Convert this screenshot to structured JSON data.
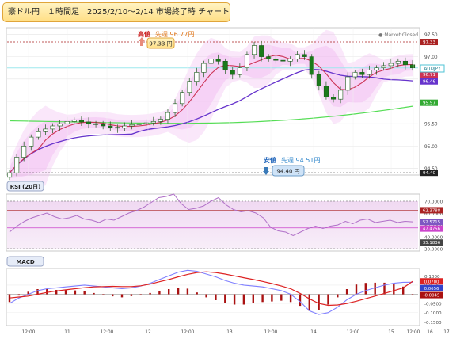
{
  "header": {
    "title": "豪ドル円　１時間足　2025/2/10〜2/14 市場終了時 チャート形状"
  },
  "colors": {
    "candle_up": "#ffffff",
    "candle_down": "#1a7a1a",
    "bb_fill": "#f1b9f1",
    "ma_short": "#cc3355",
    "ma_long": "#6633cc",
    "ma_200": "#55dd55",
    "rsi_line": "#b070c8",
    "macd_line": "#7f7fff",
    "signal_line": "#dd2222",
    "hist": "#aa1111",
    "price_line": "#9ee8ee",
    "high_line": "#aa2222",
    "low_line": "#333333"
  },
  "main": {
    "market_status": "● Market Closed",
    "ticker": "AUDJPY",
    "high_label": "高値",
    "high_prev_week": "先週 96.77円",
    "high_value": "97.33 円",
    "low_label": "安値",
    "low_prev_week": "先週 94.51円",
    "low_value": "94.40 円",
    "price_ticks": [
      "97.50",
      "97.00",
      "96.50",
      "96.00",
      "95.50",
      "95.00",
      "94.50"
    ],
    "badges": [
      {
        "text": "97.33",
        "color": "#aa2222"
      },
      {
        "text": "96.75",
        "color": "#4fc3d6"
      },
      {
        "text": "96.71",
        "color": "#cc3355"
      },
      {
        "text": "96.46",
        "color": "#6633cc"
      },
      {
        "text": "95.97",
        "color": "#33aa33"
      },
      {
        "text": "94.40",
        "color": "#222222"
      }
    ]
  },
  "rsi": {
    "label": "RSI (20日)",
    "ticks": [
      "70.0000",
      "60.0000",
      "50.0000",
      "40.0000",
      "30.0000"
    ],
    "badges": [
      {
        "text": "62.3788",
        "color": "#aa2222"
      },
      {
        "text": "52.5715",
        "color": "#7e57c2"
      },
      {
        "text": "47.4756",
        "color": "#cc44cc"
      },
      {
        "text": "35.1836",
        "color": "#444444"
      }
    ]
  },
  "macd": {
    "label": "MACD",
    "ticks": [
      "0.1000",
      "0.0500",
      "0.0000",
      "-0.0500",
      "-0.1000",
      "-0.1500"
    ],
    "badges": [
      {
        "text": "0.0700",
        "color": "#dd2222"
      },
      {
        "text": "0.0656",
        "color": "#3344cc"
      },
      {
        "text": "-0.0045",
        "color": "#aa1111"
      }
    ]
  },
  "xaxis": {
    "labels": [
      "12:00",
      "11",
      "12:00",
      "12",
      "12:00",
      "13",
      "12:00",
      "14",
      "12:00",
      "15",
      "12:00",
      "16",
      "17"
    ]
  },
  "chart_data": {
    "type": "line",
    "title": "豪ドル円　１時間足　2025/2/10〜2/14 市場終了時 チャート形状",
    "x": [
      "12:00",
      "11",
      "12:00",
      "12",
      "12:00",
      "13",
      "12:00",
      "14",
      "12:00",
      "15",
      "12:00",
      "16",
      "17"
    ],
    "price_series_close": [
      94.4,
      94.75,
      95.0,
      95.2,
      95.32,
      95.38,
      95.45,
      95.5,
      95.55,
      95.58,
      95.54,
      95.5,
      95.48,
      95.45,
      95.42,
      95.4,
      95.45,
      95.48,
      95.5,
      95.52,
      95.55,
      95.6,
      95.75,
      95.95,
      96.2,
      96.45,
      96.65,
      96.85,
      96.95,
      96.9,
      96.7,
      96.6,
      96.75,
      97.05,
      97.25,
      97.0,
      96.95,
      96.92,
      96.9,
      96.95,
      97.05,
      97.0,
      96.6,
      96.35,
      96.1,
      96.05,
      96.25,
      96.55,
      96.65,
      96.6,
      96.7,
      96.75,
      96.8,
      96.85,
      96.9,
      96.82,
      96.75
    ],
    "high": 97.33,
    "low": 94.4,
    "prev_week_high": 96.77,
    "prev_week_low": 94.51,
    "last": 96.75,
    "ma_short_last": 96.71,
    "ma_long_last": 96.46,
    "ma_200_last": 95.97,
    "ylim": [
      94.35,
      97.65
    ],
    "rsi": {
      "values": [
        44,
        49,
        53,
        56,
        58,
        60,
        57,
        55,
        56,
        58,
        55,
        54,
        52,
        55,
        54,
        57,
        60,
        62,
        65,
        69,
        73,
        74,
        76,
        68,
        63,
        64,
        66,
        70,
        73,
        67,
        63,
        61,
        62,
        60,
        56,
        48,
        45,
        44,
        41,
        44,
        47,
        49,
        47,
        49,
        50,
        53,
        51,
        54,
        55,
        52,
        53,
        54,
        52,
        53,
        52.5715
      ],
      "ylim": [
        28,
        76
      ],
      "levels": [
        70,
        30
      ],
      "last": 52.5715,
      "upper_band": 62.3788,
      "lower_band": 47.4756,
      "prev": 35.1836
    },
    "macd": {
      "macd": [
        -0.05,
        -0.02,
        0.0,
        0.02,
        0.03,
        0.035,
        0.04,
        0.045,
        0.05,
        0.045,
        0.04,
        0.035,
        0.03,
        0.035,
        0.045,
        0.06,
        0.08,
        0.1,
        0.12,
        0.13,
        0.125,
        0.11,
        0.095,
        0.075,
        0.06,
        0.05,
        0.045,
        0.04,
        0.03,
        0.02,
        0.0,
        -0.04,
        -0.09,
        -0.11,
        -0.1,
        -0.07,
        -0.03,
        0.0,
        0.02,
        0.035,
        0.05,
        0.06,
        0.065,
        0.0656
      ],
      "signal": [
        -0.02,
        -0.015,
        -0.01,
        0.0,
        0.01,
        0.018,
        0.024,
        0.03,
        0.036,
        0.04,
        0.042,
        0.043,
        0.042,
        0.042,
        0.046,
        0.055,
        0.068,
        0.08,
        0.095,
        0.108,
        0.118,
        0.122,
        0.118,
        0.11,
        0.1,
        0.09,
        0.08,
        0.07,
        0.058,
        0.045,
        0.03,
        0.005,
        -0.025,
        -0.05,
        -0.06,
        -0.058,
        -0.05,
        -0.038,
        -0.024,
        -0.01,
        0.005,
        0.02,
        0.035,
        0.07
      ],
      "ylim": [
        -0.17,
        0.14
      ],
      "last_macd": 0.0656,
      "last_signal": 0.07,
      "last_hist": -0.0045
    }
  }
}
